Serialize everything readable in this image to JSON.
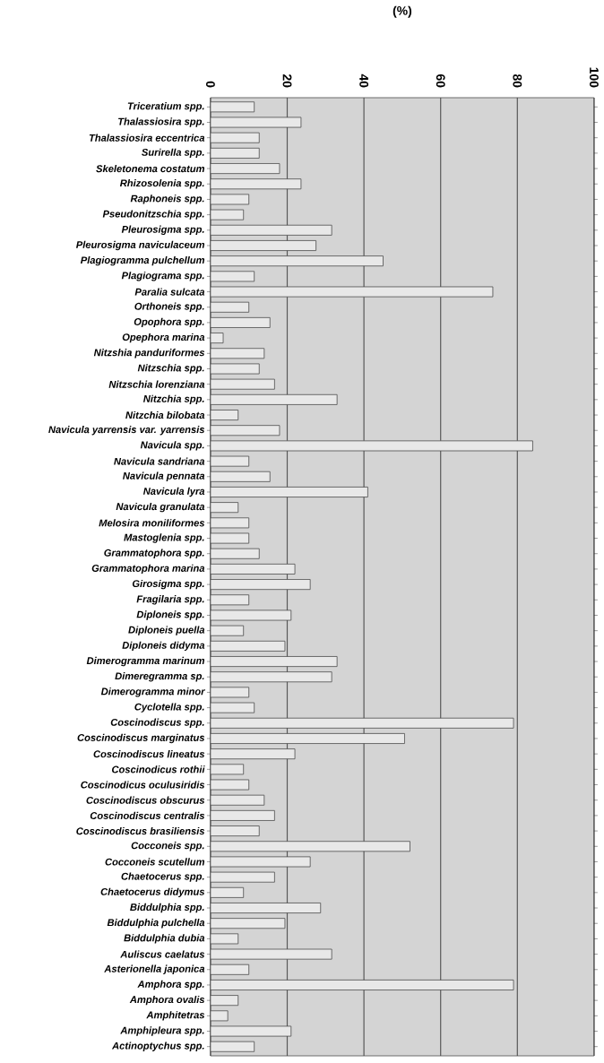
{
  "chart_data": {
    "type": "bar",
    "orientation": "horizontal",
    "xlabel": "(%)",
    "categories": [
      "Triceratium spp.",
      "Thalassiosira spp.",
      "Thalassiosira eccentrica",
      "Surirella spp.",
      "Skeletonema costatum",
      "Rhizosolenia spp.",
      "Raphoneis spp.",
      "Pseudonitzschia spp.",
      "Pleurosigma spp.",
      "Pleurosigma naviculaceum",
      "Plagiogramma pulchellum",
      "Plagiograma spp.",
      "Paralia sulcata",
      "Orthoneis spp.",
      "Opophora spp.",
      "Opephora marina",
      "Nitzshia panduriformes",
      "Nitzschia spp.",
      "Nitzschia lorenziana",
      "Nitzchia spp.",
      "Nitzchia bilobata",
      "Navicula yarrensis var. yarrensis",
      "Navicula spp.",
      "Navicula sandriana",
      "Navicula pennata",
      "Navicula lyra",
      "Navicula granulata",
      "Melosira moniliformes",
      "Mastoglenia spp.",
      "Grammatophora spp.",
      "Grammatophora marina",
      "Girosigma spp.",
      "Fragilaria spp.",
      "Diploneis spp.",
      "Diploneis puella",
      "Diploneis didyma",
      "Dimerogramma marinum",
      "Dimeregramma sp.",
      "Dimerogramma minor",
      "Cyclotella spp.",
      "Coscinodiscus spp.",
      "Coscinodiscus marginatus",
      "Coscinodiscus lineatus",
      "Coscinodicus rothii",
      "Coscinodicus oculusiridis",
      "Coscinodiscus obscurus",
      "Coscinodiscus centralis",
      "Coscinodiscus brasiliensis",
      "Cocconeis spp.",
      "Cocconeis scutellum",
      "Chaetocerus spp.",
      "Chaetocerus didymus",
      "Biddulphia spp.",
      "Biddulphia pulchella",
      "Biddulphia dubia",
      "Auliscus caelatus",
      "Asterionella japonica",
      "Amphora spp.",
      "Amphora ovalis",
      "Amphitetras",
      "Amphipleura spp.",
      "Actinoptychus spp."
    ],
    "values": [
      11.4,
      23.6,
      12.7,
      12.7,
      18,
      23.6,
      10,
      8.6,
      31.6,
      27.5,
      45,
      11.4,
      73.6,
      10,
      15.5,
      3.3,
      14,
      12.7,
      16.7,
      33,
      7.2,
      18,
      84,
      10,
      15.5,
      41,
      7.2,
      10,
      10,
      12.7,
      22,
      26,
      10,
      21,
      8.6,
      19.4,
      33,
      31.6,
      10,
      11.4,
      79,
      50.6,
      22,
      8.6,
      10,
      14,
      16.7,
      12.7,
      52,
      26,
      16.7,
      8.6,
      28.7,
      19.4,
      7.2,
      31.6,
      10,
      79,
      7.2,
      4.5,
      21,
      11.4
    ],
    "color": "#e8e8e8",
    "xlim": [
      0,
      100
    ],
    "xticks": [
      0,
      20,
      40,
      60,
      80,
      100
    ],
    "grid": "x"
  }
}
